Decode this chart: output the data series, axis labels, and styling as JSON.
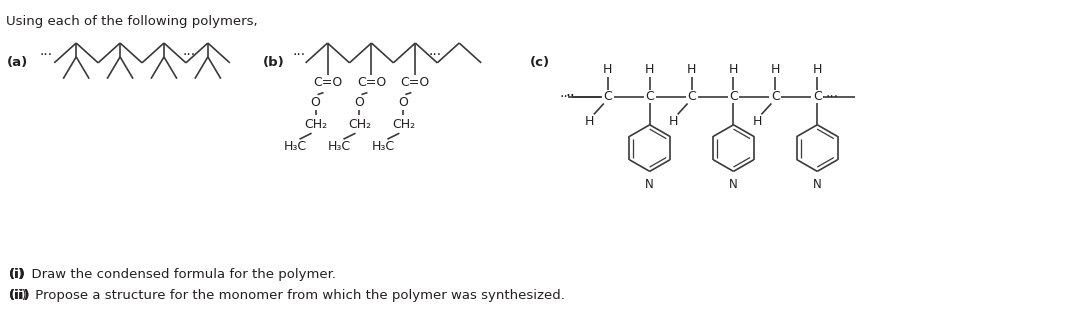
{
  "title_text": "Using each of the following polymers,",
  "label_a": "(a)",
  "label_b": "(b)",
  "label_c": "(c)",
  "instruction_i_bold": "(i)",
  "instruction_i_rest": "  Draw the condensed formula for the polymer.",
  "instruction_ii_bold": "(ii)",
  "instruction_ii_rest": "  Propose a structure for the monomer from which the polymer was synthesized.",
  "bg_color": "#ffffff",
  "text_color": "#231f20",
  "fig_width": 10.73,
  "fig_height": 3.14
}
